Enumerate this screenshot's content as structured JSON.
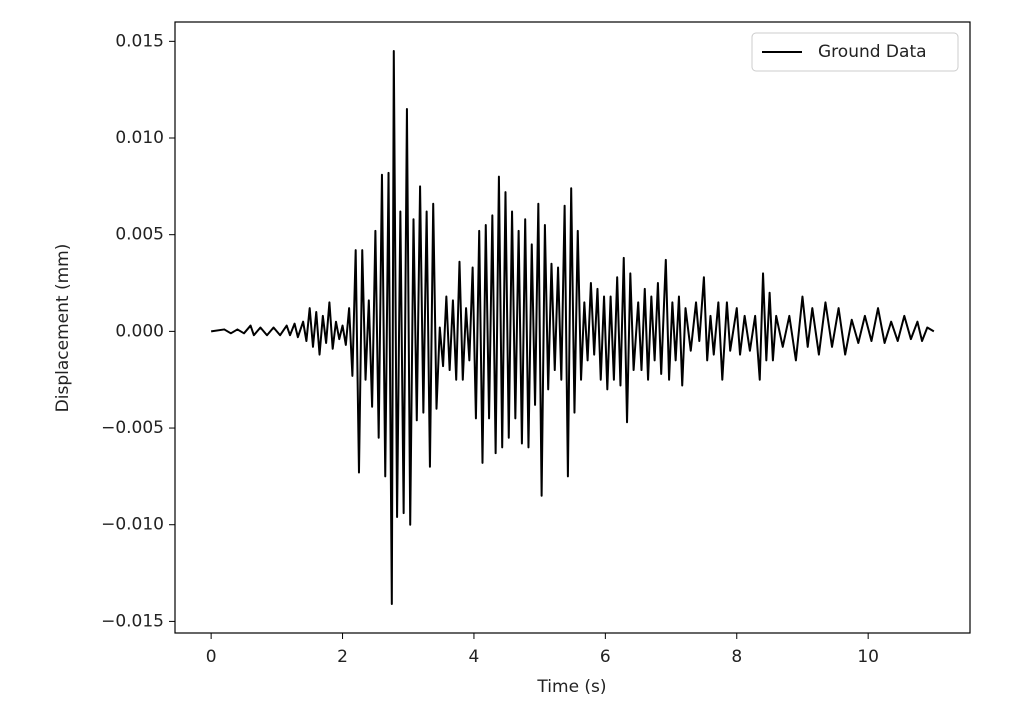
{
  "chart_data": {
    "type": "line",
    "x_label": "Time (s)",
    "y_label": "Displacement (mm)",
    "legend": "upper right",
    "xlim": [
      -0.55,
      11.55
    ],
    "ylim": [
      -0.0156,
      0.016
    ],
    "xticks": [
      0,
      2,
      4,
      6,
      8,
      10
    ],
    "yticks": [
      {
        "value": -0.015,
        "label": "−0.015"
      },
      {
        "value": -0.01,
        "label": "−0.010"
      },
      {
        "value": -0.005,
        "label": "−0.005"
      },
      {
        "value": 0,
        "label": "0.000"
      },
      0.005,
      {
        "value": 0.01,
        "label": "0.010"
      },
      0.015
    ],
    "x": [
      0,
      0.2,
      0.3,
      0.4,
      0.5,
      0.6,
      0.65,
      0.75,
      0.85,
      0.95,
      1.05,
      1.15,
      1.2,
      1.27,
      1.32,
      1.4,
      1.45,
      1.5,
      1.55,
      1.6,
      1.65,
      1.7,
      1.75,
      1.8,
      1.85,
      1.9,
      1.95,
      2.0,
      2.05,
      2.1,
      2.15,
      2.2,
      2.25,
      2.3,
      2.35,
      2.4,
      2.45,
      2.5,
      2.55,
      2.6,
      2.65,
      2.7,
      2.75,
      2.78,
      2.83,
      2.88,
      2.93,
      2.98,
      3.03,
      3.08,
      3.13,
      3.18,
      3.23,
      3.28,
      3.33,
      3.38,
      3.43,
      3.48,
      3.53,
      3.58,
      3.63,
      3.68,
      3.73,
      3.78,
      3.83,
      3.88,
      3.93,
      3.98,
      4.03,
      4.08,
      4.13,
      4.18,
      4.23,
      4.28,
      4.33,
      4.38,
      4.43,
      4.48,
      4.53,
      4.58,
      4.63,
      4.68,
      4.73,
      4.78,
      4.83,
      4.88,
      4.93,
      4.98,
      5.03,
      5.08,
      5.13,
      5.18,
      5.23,
      5.28,
      5.33,
      5.38,
      5.43,
      5.48,
      5.53,
      5.58,
      5.63,
      5.68,
      5.73,
      5.78,
      5.83,
      5.88,
      5.93,
      5.98,
      6.03,
      6.08,
      6.13,
      6.18,
      6.23,
      6.28,
      6.33,
      6.38,
      6.43,
      6.5,
      6.55,
      6.6,
      6.65,
      6.7,
      6.75,
      6.8,
      6.85,
      6.92,
      6.97,
      7.02,
      7.07,
      7.12,
      7.17,
      7.22,
      7.3,
      7.38,
      7.43,
      7.5,
      7.55,
      7.6,
      7.65,
      7.72,
      7.78,
      7.85,
      7.9,
      8.0,
      8.05,
      8.12,
      8.2,
      8.28,
      8.35,
      8.4,
      8.45,
      8.5,
      8.55,
      8.6,
      8.7,
      8.8,
      8.9,
      9.0,
      9.08,
      9.15,
      9.25,
      9.35,
      9.45,
      9.55,
      9.65,
      9.75,
      9.85,
      9.95,
      10.05,
      10.15,
      10.25,
      10.35,
      10.45,
      10.55,
      10.65,
      10.75,
      10.82,
      10.9,
      11.0
    ],
    "series": [
      {
        "name": "Ground Data",
        "color": "#000000",
        "values": [
          0,
          0.0001,
          -0.0001,
          0.0001,
          -0.0001,
          0.0003,
          -0.0002,
          0.0002,
          -0.0002,
          0.0002,
          -0.0002,
          0.0003,
          -0.0002,
          0.0004,
          -0.0003,
          0.0005,
          -0.0005,
          0.0012,
          -0.0008,
          0.001,
          -0.0012,
          0.0008,
          -0.0006,
          0.0015,
          -0.0009,
          0.0005,
          -0.0004,
          0.0003,
          -0.0007,
          0.0012,
          -0.0023,
          0.0042,
          -0.0073,
          0.0042,
          -0.0025,
          0.0016,
          -0.0039,
          0.0052,
          -0.0055,
          0.0081,
          -0.0075,
          0.0082,
          -0.0141,
          0.0145,
          -0.0096,
          0.0062,
          -0.0094,
          0.0115,
          -0.01,
          0.0058,
          -0.0046,
          0.0075,
          -0.0042,
          0.0062,
          -0.007,
          0.0066,
          -0.004,
          0.0002,
          -0.0018,
          0.0018,
          -0.002,
          0.0016,
          -0.0025,
          0.0036,
          -0.0025,
          0.0012,
          -0.0015,
          0.0033,
          -0.0045,
          0.0052,
          -0.0068,
          0.0055,
          -0.0045,
          0.006,
          -0.0063,
          0.008,
          -0.006,
          0.0072,
          -0.0055,
          0.0062,
          -0.0045,
          0.0052,
          -0.0058,
          0.0058,
          -0.006,
          0.0045,
          -0.0038,
          0.0066,
          -0.0085,
          0.0055,
          -0.003,
          0.0035,
          -0.002,
          0.0033,
          -0.0025,
          0.0065,
          -0.0075,
          0.0074,
          -0.0042,
          0.0052,
          -0.0025,
          0.0015,
          -0.0015,
          0.0025,
          -0.0012,
          0.0022,
          -0.0025,
          0.0018,
          -0.003,
          0.0018,
          -0.0025,
          0.0028,
          -0.0028,
          0.0038,
          -0.0047,
          0.003,
          -0.002,
          0.0015,
          -0.002,
          0.0022,
          -0.0025,
          0.0018,
          -0.0015,
          0.0025,
          -0.0022,
          0.0037,
          -0.0025,
          0.0015,
          -0.0015,
          0.0018,
          -0.0028,
          0.0012,
          -0.001,
          0.0015,
          -0.0005,
          0.0028,
          -0.0015,
          0.0008,
          -0.0012,
          0.0015,
          -0.0025,
          0.0015,
          -0.001,
          0.0012,
          -0.0012,
          0.0008,
          -0.001,
          0.0008,
          -0.0025,
          0.003,
          -0.0015,
          0.002,
          -0.0015,
          0.0008,
          -0.0008,
          0.0008,
          -0.0015,
          0.0018,
          -0.0008,
          0.0012,
          -0.0012,
          0.0015,
          -0.0008,
          0.0012,
          -0.0012,
          0.0006,
          -0.0006,
          0.0008,
          -0.0005,
          0.0012,
          -0.0006,
          0.0005,
          -0.0005,
          0.0008,
          -0.0004,
          0.0005,
          -0.0005,
          0.0002,
          0
        ]
      }
    ]
  }
}
